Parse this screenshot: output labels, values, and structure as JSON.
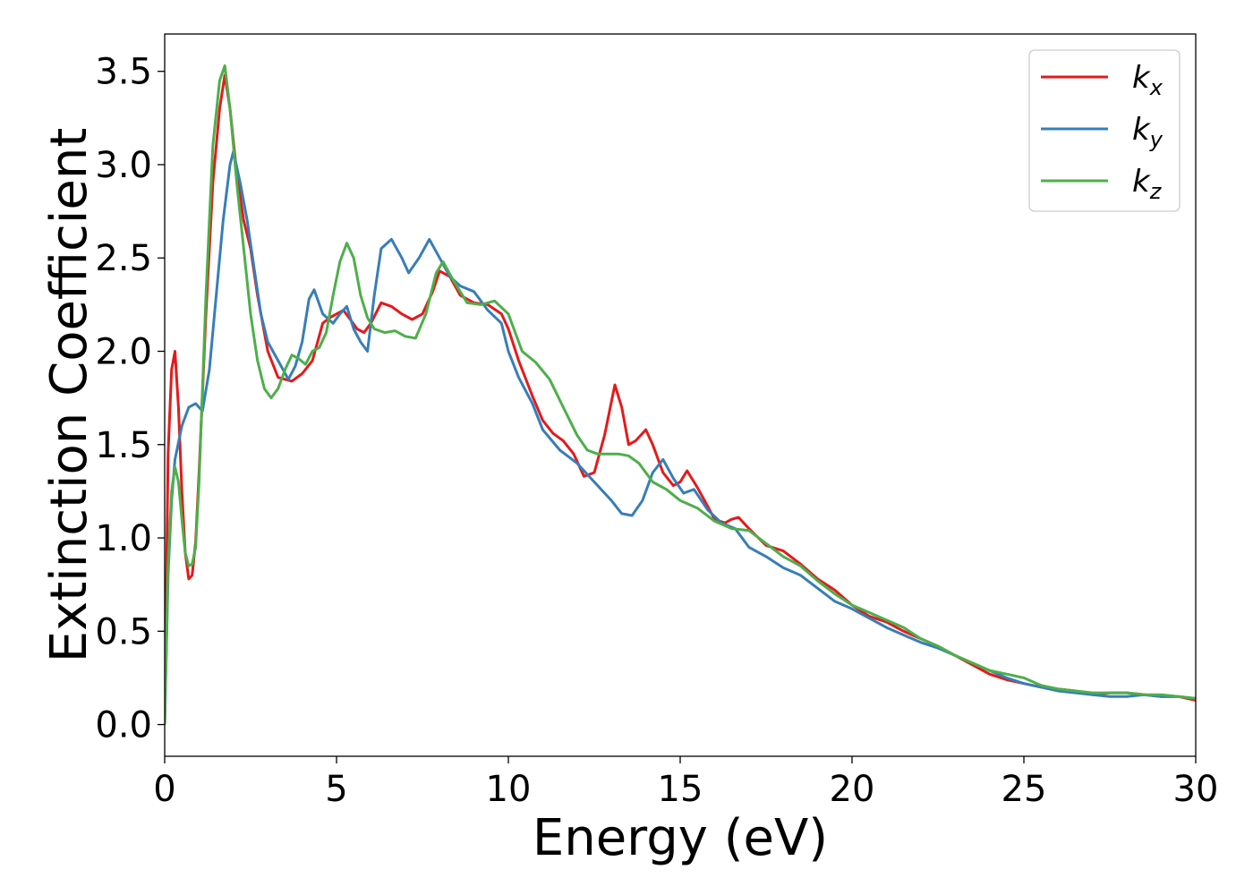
{
  "chart_data": {
    "type": "line",
    "title": "",
    "xlabel": "Energy (eV)",
    "ylabel": "Extinction Coefficient",
    "xlim": [
      0,
      30
    ],
    "ylim": [
      -0.17,
      3.7
    ],
    "xticks": [
      0,
      5,
      10,
      15,
      20,
      25,
      30
    ],
    "xtick_labels": [
      "0",
      "5",
      "10",
      "15",
      "20",
      "25",
      "30"
    ],
    "yticks": [
      0.0,
      0.5,
      1.0,
      1.5,
      2.0,
      2.5,
      3.0,
      3.5
    ],
    "ytick_labels": [
      "0.0",
      "0.5",
      "1.0",
      "1.5",
      "2.0",
      "2.5",
      "3.0",
      "3.5"
    ],
    "grid": false,
    "legend_position": "top-right",
    "series": [
      {
        "name": "k",
        "subscript": "x",
        "color": "#e41a1c",
        "x": [
          0,
          0.1,
          0.2,
          0.3,
          0.4,
          0.5,
          0.6,
          0.7,
          0.8,
          0.9,
          1.0,
          1.2,
          1.4,
          1.6,
          1.75,
          1.9,
          2.1,
          2.3,
          2.5,
          2.7,
          3.0,
          3.3,
          3.7,
          4.0,
          4.3,
          4.6,
          4.8,
          5.0,
          5.2,
          5.4,
          5.6,
          5.8,
          6.0,
          6.3,
          6.6,
          6.9,
          7.2,
          7.5,
          7.8,
          8.0,
          8.3,
          8.6,
          9.0,
          9.4,
          9.8,
          10.0,
          10.3,
          10.7,
          11.0,
          11.3,
          11.6,
          11.9,
          12.2,
          12.5,
          12.8,
          13.1,
          13.3,
          13.5,
          13.7,
          14.0,
          14.2,
          14.5,
          14.8,
          15.0,
          15.2,
          15.5,
          15.8,
          16.0,
          16.3,
          16.5,
          16.7,
          17.0,
          17.5,
          18.0,
          18.5,
          19.0,
          19.5,
          20.0,
          20.5,
          21.0,
          21.5,
          22.0,
          22.5,
          23.0,
          23.5,
          24.0,
          24.5,
          25.0,
          25.5,
          26.0,
          26.5,
          27.0,
          27.5,
          28.0,
          28.5,
          29.0,
          29.5,
          30.0
        ],
        "y": [
          0.0,
          1.45,
          1.9,
          2.0,
          1.7,
          1.25,
          0.92,
          0.78,
          0.8,
          0.98,
          1.35,
          2.2,
          2.9,
          3.3,
          3.48,
          3.3,
          2.95,
          2.7,
          2.55,
          2.3,
          2.0,
          1.86,
          1.84,
          1.88,
          1.95,
          2.15,
          2.18,
          2.2,
          2.22,
          2.17,
          2.12,
          2.1,
          2.15,
          2.26,
          2.24,
          2.2,
          2.17,
          2.2,
          2.32,
          2.43,
          2.4,
          2.3,
          2.26,
          2.25,
          2.2,
          2.12,
          1.95,
          1.76,
          1.63,
          1.56,
          1.52,
          1.45,
          1.33,
          1.35,
          1.55,
          1.82,
          1.7,
          1.5,
          1.52,
          1.58,
          1.5,
          1.35,
          1.28,
          1.3,
          1.36,
          1.27,
          1.17,
          1.1,
          1.08,
          1.1,
          1.11,
          1.05,
          0.96,
          0.93,
          0.86,
          0.78,
          0.72,
          0.64,
          0.58,
          0.55,
          0.5,
          0.46,
          0.42,
          0.37,
          0.32,
          0.27,
          0.24,
          0.22,
          0.2,
          0.19,
          0.18,
          0.16,
          0.17,
          0.17,
          0.16,
          0.15,
          0.15,
          0.13
        ]
      },
      {
        "name": "k",
        "subscript": "y",
        "color": "#377eb8",
        "x": [
          0,
          0.1,
          0.2,
          0.3,
          0.5,
          0.7,
          0.9,
          1.1,
          1.3,
          1.5,
          1.7,
          1.9,
          2.0,
          2.2,
          2.4,
          2.6,
          2.8,
          3.0,
          3.3,
          3.6,
          3.8,
          4.0,
          4.2,
          4.35,
          4.6,
          4.9,
          5.1,
          5.3,
          5.5,
          5.7,
          5.9,
          6.1,
          6.3,
          6.6,
          6.9,
          7.1,
          7.4,
          7.7,
          8.0,
          8.3,
          8.6,
          9.0,
          9.4,
          9.8,
          10.0,
          10.3,
          10.7,
          11.0,
          11.5,
          12.0,
          12.5,
          13.0,
          13.3,
          13.6,
          13.9,
          14.2,
          14.5,
          14.8,
          15.1,
          15.4,
          15.8,
          16.2,
          16.6,
          17.0,
          17.5,
          18.0,
          18.5,
          19.0,
          19.5,
          20.0,
          20.5,
          21.0,
          21.5,
          22.0,
          22.5,
          23.0,
          23.5,
          24.0,
          24.5,
          25.0,
          25.5,
          26.0,
          26.5,
          27.0,
          27.5,
          28.0,
          28.5,
          29.0,
          29.5,
          30.0
        ],
        "y": [
          0.0,
          0.8,
          1.2,
          1.42,
          1.6,
          1.7,
          1.72,
          1.68,
          1.9,
          2.3,
          2.7,
          3.0,
          3.07,
          2.9,
          2.7,
          2.45,
          2.2,
          2.05,
          1.95,
          1.85,
          1.92,
          2.05,
          2.28,
          2.33,
          2.2,
          2.15,
          2.2,
          2.24,
          2.12,
          2.05,
          2.0,
          2.3,
          2.55,
          2.6,
          2.5,
          2.42,
          2.5,
          2.6,
          2.5,
          2.4,
          2.35,
          2.32,
          2.22,
          2.15,
          2.0,
          1.86,
          1.72,
          1.58,
          1.47,
          1.4,
          1.3,
          1.2,
          1.13,
          1.12,
          1.2,
          1.35,
          1.42,
          1.32,
          1.24,
          1.26,
          1.15,
          1.08,
          1.05,
          0.95,
          0.9,
          0.84,
          0.8,
          0.73,
          0.66,
          0.62,
          0.57,
          0.52,
          0.48,
          0.44,
          0.41,
          0.37,
          0.33,
          0.29,
          0.25,
          0.22,
          0.2,
          0.18,
          0.17,
          0.16,
          0.15,
          0.15,
          0.16,
          0.15,
          0.15,
          0.14
        ]
      },
      {
        "name": "k",
        "subscript": "z",
        "color": "#4daf4a",
        "x": [
          0,
          0.1,
          0.2,
          0.3,
          0.4,
          0.5,
          0.6,
          0.7,
          0.8,
          0.9,
          1.0,
          1.2,
          1.4,
          1.6,
          1.75,
          1.9,
          2.1,
          2.3,
          2.5,
          2.7,
          2.9,
          3.1,
          3.3,
          3.5,
          3.7,
          3.9,
          4.1,
          4.3,
          4.5,
          4.7,
          4.9,
          5.1,
          5.3,
          5.5,
          5.7,
          5.9,
          6.1,
          6.4,
          6.7,
          7.0,
          7.3,
          7.6,
          7.9,
          8.1,
          8.4,
          8.8,
          9.2,
          9.6,
          10.0,
          10.4,
          10.8,
          11.2,
          11.6,
          12.0,
          12.3,
          12.6,
          12.9,
          13.2,
          13.5,
          13.8,
          14.2,
          14.6,
          15.0,
          15.5,
          16.0,
          16.5,
          17.0,
          17.5,
          18.0,
          18.5,
          19.0,
          19.5,
          20.0,
          20.5,
          21.0,
          21.5,
          22.0,
          22.5,
          23.0,
          23.5,
          24.0,
          24.5,
          25.0,
          25.5,
          26.0,
          26.5,
          27.0,
          27.5,
          28.0,
          28.5,
          29.0,
          29.5,
          30.0
        ],
        "y": [
          0.0,
          0.85,
          1.25,
          1.38,
          1.3,
          1.1,
          0.92,
          0.85,
          0.86,
          0.95,
          1.3,
          2.3,
          3.1,
          3.45,
          3.53,
          3.3,
          2.9,
          2.55,
          2.2,
          1.95,
          1.8,
          1.75,
          1.8,
          1.9,
          1.98,
          1.96,
          1.93,
          2.0,
          2.02,
          2.1,
          2.3,
          2.48,
          2.58,
          2.5,
          2.3,
          2.18,
          2.12,
          2.1,
          2.11,
          2.08,
          2.07,
          2.2,
          2.42,
          2.48,
          2.38,
          2.26,
          2.25,
          2.27,
          2.2,
          2.0,
          1.94,
          1.85,
          1.7,
          1.55,
          1.47,
          1.45,
          1.45,
          1.45,
          1.44,
          1.4,
          1.3,
          1.26,
          1.2,
          1.16,
          1.09,
          1.05,
          1.04,
          0.97,
          0.9,
          0.85,
          0.77,
          0.7,
          0.64,
          0.6,
          0.56,
          0.52,
          0.46,
          0.42,
          0.37,
          0.33,
          0.29,
          0.27,
          0.25,
          0.21,
          0.19,
          0.18,
          0.17,
          0.17,
          0.17,
          0.16,
          0.16,
          0.15,
          0.14
        ]
      }
    ]
  }
}
